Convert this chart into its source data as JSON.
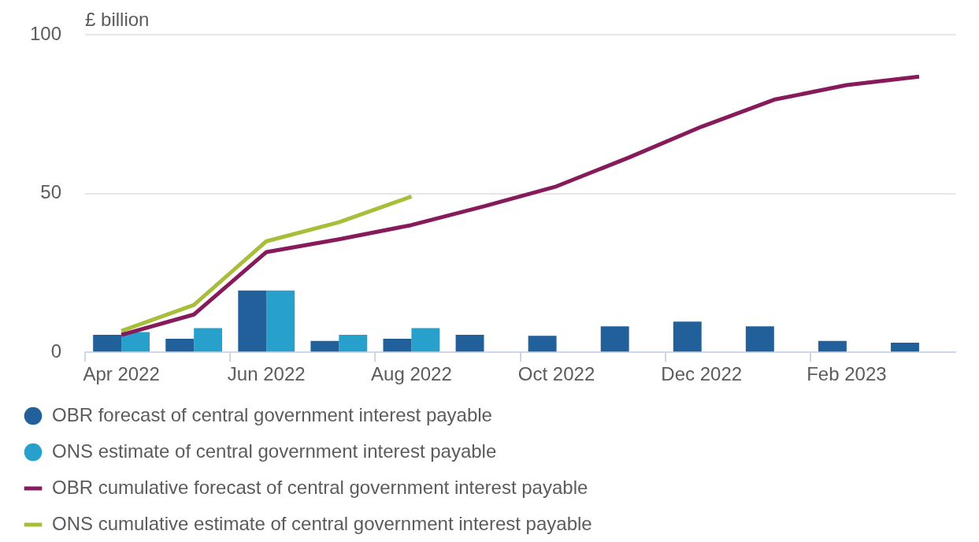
{
  "chart_data": {
    "type": "bar",
    "ylabel": "£ billion",
    "categories": [
      "Apr 2022",
      null,
      "Jun 2022",
      null,
      "Aug 2022",
      null,
      "Oct 2022",
      null,
      "Dec 2022",
      null,
      "Feb 2023",
      null
    ],
    "ylim": [
      0,
      100
    ],
    "yticks": [
      0,
      50,
      100
    ],
    "grid": "y",
    "legend": "bottom",
    "marker": "none",
    "series": [
      {
        "name": "OBR forecast of central government interest payable",
        "color": "#21609a",
        "values": [
          5.5,
          4.3,
          19.5,
          3.6,
          4.3,
          5.5,
          5.2,
          8.2,
          9.7,
          8.2,
          3.6,
          3.0
        ]
      },
      {
        "name": "ONS estimate of central government interest payable",
        "color": "#27a0cc",
        "values": [
          6.4,
          7.6,
          19.5,
          5.5,
          7.6,
          null,
          null,
          null,
          null,
          null,
          null,
          null
        ]
      },
      {
        "name": "OBR cumulative forecast of central government interest payable",
        "type": "line",
        "color": "#871a5b",
        "values": [
          5.5,
          11.9,
          31.6,
          35.6,
          40.1,
          46,
          52.3,
          61.4,
          71.1,
          79.6,
          84.2,
          86.9
        ]
      },
      {
        "name": "ONS cumulative estimate of central government interest payable",
        "type": "line",
        "color": "#a8bd3a",
        "values": [
          6.7,
          14.9,
          35.0,
          41.0,
          49.1,
          null,
          null,
          null,
          null,
          null,
          null,
          null
        ]
      }
    ]
  }
}
